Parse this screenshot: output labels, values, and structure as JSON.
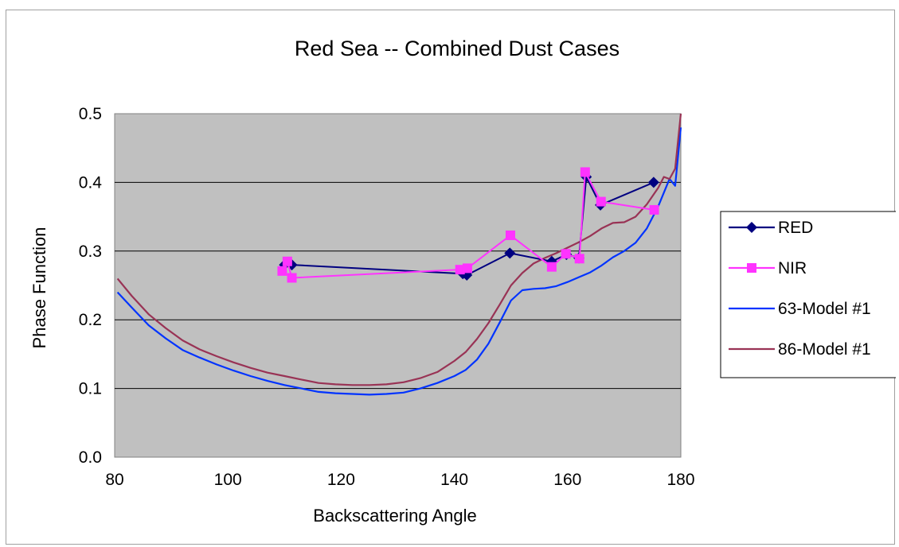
{
  "chart_data": {
    "type": "line",
    "title": "Red Sea -- Combined Dust Cases",
    "xlabel": "Backscattering Angle",
    "ylabel": "Phase Function",
    "xlim": [
      80,
      180
    ],
    "ylim": [
      0.0,
      0.5
    ],
    "x_ticks": [
      "80",
      "100",
      "120",
      "140",
      "160",
      "180"
    ],
    "y_ticks": [
      "0.0",
      "0.1",
      "0.2",
      "0.3",
      "0.4",
      "0.5"
    ],
    "grid": "horizontal",
    "plot_background": "#c0c0c0",
    "legend_position": "right",
    "series": [
      {
        "name": "RED",
        "color": "#000080",
        "marker": "diamond",
        "x": [
          110.0,
          111.3,
          141.5,
          142.2,
          149.8,
          157.2,
          159.8,
          162.0,
          163.3,
          165.8,
          175.2
        ],
        "y": [
          0.28,
          0.28,
          0.267,
          0.265,
          0.297,
          0.285,
          0.295,
          0.29,
          0.408,
          0.367,
          0.4
        ]
      },
      {
        "name": "NIR",
        "color": "#ff33ff",
        "marker": "square",
        "x": [
          109.6,
          110.5,
          111.3,
          141.0,
          142.3,
          149.9,
          157.2,
          159.7,
          162.1,
          163.1,
          165.9,
          175.3
        ],
        "y": [
          0.271,
          0.285,
          0.261,
          0.273,
          0.275,
          0.323,
          0.277,
          0.296,
          0.289,
          0.415,
          0.372,
          0.36
        ]
      },
      {
        "name": "63-Model #1",
        "color": "#0033ff",
        "marker": "none",
        "x": [
          80.5,
          83,
          86,
          89,
          92,
          95,
          98,
          101,
          104,
          107,
          110,
          113,
          116,
          119,
          122,
          125,
          128,
          131,
          134,
          137,
          140,
          142,
          144,
          146,
          148,
          150,
          152,
          154,
          156,
          158,
          160,
          162,
          164,
          166,
          168,
          170,
          172,
          174,
          176,
          178,
          179,
          180
        ],
        "y": [
          0.24,
          0.218,
          0.192,
          0.173,
          0.156,
          0.145,
          0.135,
          0.126,
          0.118,
          0.111,
          0.105,
          0.1,
          0.095,
          0.093,
          0.092,
          0.091,
          0.092,
          0.094,
          0.1,
          0.108,
          0.118,
          0.127,
          0.142,
          0.165,
          0.196,
          0.228,
          0.243,
          0.245,
          0.246,
          0.249,
          0.255,
          0.262,
          0.269,
          0.279,
          0.291,
          0.3,
          0.312,
          0.333,
          0.365,
          0.405,
          0.395,
          0.48
        ]
      },
      {
        "name": "86-Model #1",
        "color": "#993355",
        "marker": "none",
        "x": [
          80.5,
          83,
          86,
          89,
          92,
          95,
          98,
          101,
          104,
          107,
          110,
          113,
          116,
          119,
          122,
          125,
          128,
          131,
          134,
          137,
          140,
          142,
          144,
          146,
          148,
          150,
          152,
          154,
          156,
          158,
          160,
          162,
          164,
          166,
          168,
          170,
          172,
          174,
          176,
          177,
          178,
          179,
          180
        ],
        "y": [
          0.26,
          0.235,
          0.208,
          0.188,
          0.17,
          0.157,
          0.147,
          0.138,
          0.13,
          0.123,
          0.118,
          0.113,
          0.108,
          0.106,
          0.105,
          0.105,
          0.106,
          0.109,
          0.115,
          0.124,
          0.14,
          0.153,
          0.172,
          0.195,
          0.222,
          0.25,
          0.268,
          0.282,
          0.29,
          0.297,
          0.305,
          0.313,
          0.322,
          0.333,
          0.341,
          0.342,
          0.35,
          0.368,
          0.392,
          0.408,
          0.405,
          0.42,
          0.5
        ]
      }
    ]
  }
}
